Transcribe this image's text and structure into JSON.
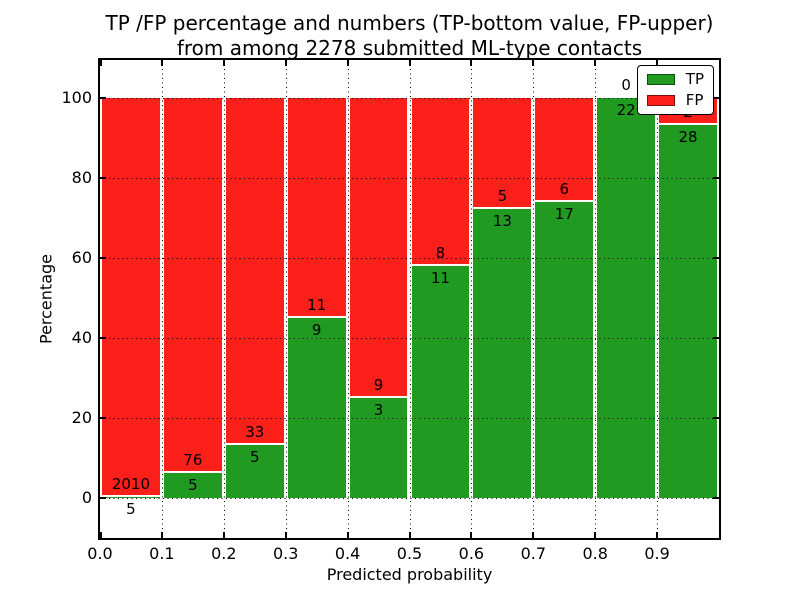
{
  "chart_data": {
    "type": "bar",
    "stacked": true,
    "orientation": "vertical",
    "title_line1": "TP /FP percentage and numbers (TP-bottom value, FP-upper)",
    "title_line2": "from among 2278 submitted ML-type contacts",
    "total_submitted_contacts": 2278,
    "xlabel": "Predicted probability",
    "ylabel": "Percentage",
    "bins": [
      "0.0-0.1",
      "0.1-0.2",
      "0.2-0.3",
      "0.3-0.4",
      "0.4-0.5",
      "0.5-0.6",
      "0.6-0.7",
      "0.7-0.8",
      "0.8-0.9",
      "0.9-1.0"
    ],
    "series": [
      {
        "name": "TP",
        "color": "#219a21",
        "counts": [
          5,
          5,
          5,
          9,
          3,
          11,
          13,
          17,
          22,
          28
        ]
      },
      {
        "name": "FP",
        "color": "#fb201a",
        "counts": [
          2010,
          76,
          33,
          11,
          9,
          8,
          5,
          6,
          0,
          2
        ]
      }
    ],
    "tp_percent": [
      0.25,
      6.17,
      13.16,
      45.0,
      25.0,
      57.89,
      72.22,
      73.91,
      100.0,
      93.33
    ],
    "x_ticks": [
      "0.0",
      "0.1",
      "0.2",
      "0.3",
      "0.4",
      "0.5",
      "0.6",
      "0.7",
      "0.8",
      "0.9"
    ],
    "y_ticks": [
      0,
      20,
      40,
      60,
      80,
      100
    ],
    "xlim": [
      0.0,
      1.0
    ],
    "ylim": [
      -10,
      109.5
    ],
    "grid": {
      "style": "dotted",
      "color": "#000000",
      "ticks_direction": "in"
    },
    "legend": {
      "position": "upper-right",
      "entries": [
        {
          "label": "TP",
          "color": "#219a21"
        },
        {
          "label": "FP",
          "color": "#fb201a"
        }
      ]
    }
  }
}
